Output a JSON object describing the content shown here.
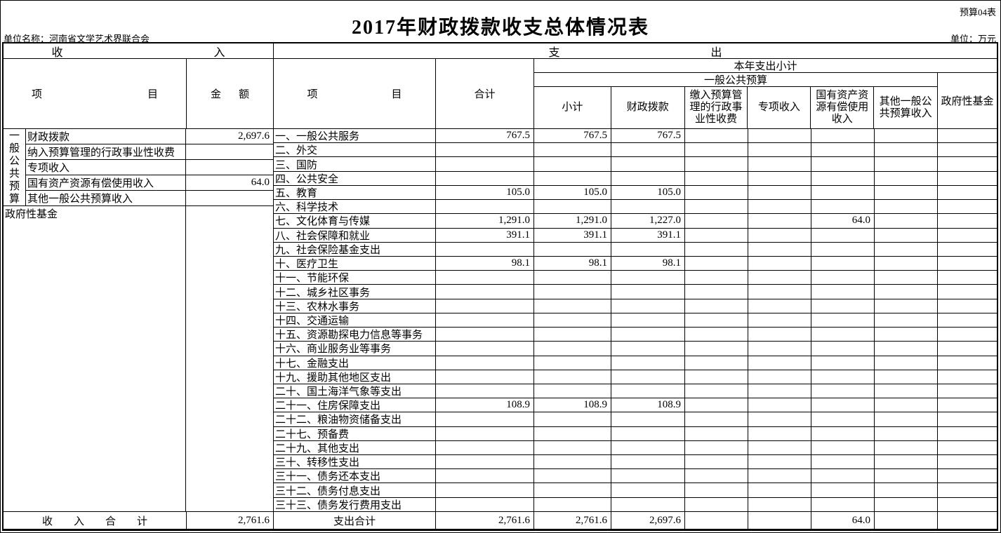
{
  "meta": {
    "sheet_label": "预算04表",
    "title": "2017年财政拨款收支总体情况表",
    "unit_name": "单位名称：河南省文学艺术界联合会",
    "unit": "单位：万元"
  },
  "headers": {
    "income_section": "收入",
    "expense_section": "支出",
    "income_item": "项目",
    "income_amount": "金额",
    "expense_item": "项目",
    "expense_total": "合计",
    "year_subtotal": "本年支出小计",
    "general_budget": "一般公共预算",
    "col_subtotal": "小计",
    "col_fiscal": "财政拨款",
    "col_fee": "缴入预算管理的行政事业性收费",
    "col_special": "专项收入",
    "col_state_asset": "国有资产资源有偿使用收入",
    "col_other": "其他一般公共预算收入",
    "col_gov_fund": "政府性基金"
  },
  "income": {
    "group_label": "一般公共预算",
    "rows": [
      {
        "item": "财政拨款",
        "amount": "2,697.6"
      },
      {
        "item": "纳入预算管理的行政事业性收费",
        "amount": ""
      },
      {
        "item": "专项收入",
        "amount": ""
      },
      {
        "item": "国有资产资源有偿使用收入",
        "amount": "64.0"
      },
      {
        "item": "其他一般公共预算收入",
        "amount": ""
      }
    ],
    "gov_fund_row": {
      "item": "政府性基金",
      "amount": ""
    },
    "empty_row_count": 19,
    "total": {
      "label": "收入合计",
      "amount": "2,761.6"
    }
  },
  "expense": {
    "rows": [
      {
        "item": "一、一般公共服务",
        "total": "767.5",
        "subtotal": "767.5",
        "fiscal": "767.5",
        "fee": "",
        "special": "",
        "state_asset": "",
        "other": "",
        "gov_fund": ""
      },
      {
        "item": "二、外交",
        "total": "",
        "subtotal": "",
        "fiscal": "",
        "fee": "",
        "special": "",
        "state_asset": "",
        "other": "",
        "gov_fund": ""
      },
      {
        "item": "三、国防",
        "total": "",
        "subtotal": "",
        "fiscal": "",
        "fee": "",
        "special": "",
        "state_asset": "",
        "other": "",
        "gov_fund": ""
      },
      {
        "item": "四、公共安全",
        "total": "",
        "subtotal": "",
        "fiscal": "",
        "fee": "",
        "special": "",
        "state_asset": "",
        "other": "",
        "gov_fund": ""
      },
      {
        "item": "五、教育",
        "total": "105.0",
        "subtotal": "105.0",
        "fiscal": "105.0",
        "fee": "",
        "special": "",
        "state_asset": "",
        "other": "",
        "gov_fund": ""
      },
      {
        "item": "六、科学技术",
        "total": "",
        "subtotal": "",
        "fiscal": "",
        "fee": "",
        "special": "",
        "state_asset": "",
        "other": "",
        "gov_fund": ""
      },
      {
        "item": "七、文化体育与传媒",
        "total": "1,291.0",
        "subtotal": "1,291.0",
        "fiscal": "1,227.0",
        "fee": "",
        "special": "",
        "state_asset": "64.0",
        "other": "",
        "gov_fund": ""
      },
      {
        "item": "八、社会保障和就业",
        "total": "391.1",
        "subtotal": "391.1",
        "fiscal": "391.1",
        "fee": "",
        "special": "",
        "state_asset": "",
        "other": "",
        "gov_fund": ""
      },
      {
        "item": "九、社会保险基金支出",
        "total": "",
        "subtotal": "",
        "fiscal": "",
        "fee": "",
        "special": "",
        "state_asset": "",
        "other": "",
        "gov_fund": ""
      },
      {
        "item": "十、医疗卫生",
        "total": "98.1",
        "subtotal": "98.1",
        "fiscal": "98.1",
        "fee": "",
        "special": "",
        "state_asset": "",
        "other": "",
        "gov_fund": ""
      },
      {
        "item": "十一、节能环保",
        "total": "",
        "subtotal": "",
        "fiscal": "",
        "fee": "",
        "special": "",
        "state_asset": "",
        "other": "",
        "gov_fund": ""
      },
      {
        "item": "十二、城乡社区事务",
        "total": "",
        "subtotal": "",
        "fiscal": "",
        "fee": "",
        "special": "",
        "state_asset": "",
        "other": "",
        "gov_fund": ""
      },
      {
        "item": "十三、农林水事务",
        "total": "",
        "subtotal": "",
        "fiscal": "",
        "fee": "",
        "special": "",
        "state_asset": "",
        "other": "",
        "gov_fund": ""
      },
      {
        "item": "十四、交通运输",
        "total": "",
        "subtotal": "",
        "fiscal": "",
        "fee": "",
        "special": "",
        "state_asset": "",
        "other": "",
        "gov_fund": ""
      },
      {
        "item": "十五、资源勘探电力信息等事务",
        "total": "",
        "subtotal": "",
        "fiscal": "",
        "fee": "",
        "special": "",
        "state_asset": "",
        "other": "",
        "gov_fund": ""
      },
      {
        "item": "十六、商业服务业等事务",
        "total": "",
        "subtotal": "",
        "fiscal": "",
        "fee": "",
        "special": "",
        "state_asset": "",
        "other": "",
        "gov_fund": ""
      },
      {
        "item": "十七、金融支出",
        "total": "",
        "subtotal": "",
        "fiscal": "",
        "fee": "",
        "special": "",
        "state_asset": "",
        "other": "",
        "gov_fund": ""
      },
      {
        "item": "十九、援助其他地区支出",
        "total": "",
        "subtotal": "",
        "fiscal": "",
        "fee": "",
        "special": "",
        "state_asset": "",
        "other": "",
        "gov_fund": ""
      },
      {
        "item": "二十、国土海洋气象等支出",
        "total": "",
        "subtotal": "",
        "fiscal": "",
        "fee": "",
        "special": "",
        "state_asset": "",
        "other": "",
        "gov_fund": ""
      },
      {
        "item": "二十一、住房保障支出",
        "total": "108.9",
        "subtotal": "108.9",
        "fiscal": "108.9",
        "fee": "",
        "special": "",
        "state_asset": "",
        "other": "",
        "gov_fund": ""
      },
      {
        "item": "二十二、粮油物资储备支出",
        "total": "",
        "subtotal": "",
        "fiscal": "",
        "fee": "",
        "special": "",
        "state_asset": "",
        "other": "",
        "gov_fund": ""
      },
      {
        "item": "二十七、预备费",
        "total": "",
        "subtotal": "",
        "fiscal": "",
        "fee": "",
        "special": "",
        "state_asset": "",
        "other": "",
        "gov_fund": ""
      },
      {
        "item": "二十九、其他支出",
        "total": "",
        "subtotal": "",
        "fiscal": "",
        "fee": "",
        "special": "",
        "state_asset": "",
        "other": "",
        "gov_fund": ""
      },
      {
        "item": "三十、转移性支出",
        "total": "",
        "subtotal": "",
        "fiscal": "",
        "fee": "",
        "special": "",
        "state_asset": "",
        "other": "",
        "gov_fund": ""
      },
      {
        "item": "三十一、债务还本支出",
        "total": "",
        "subtotal": "",
        "fiscal": "",
        "fee": "",
        "special": "",
        "state_asset": "",
        "other": "",
        "gov_fund": ""
      },
      {
        "item": "三十二、债务付息支出",
        "total": "",
        "subtotal": "",
        "fiscal": "",
        "fee": "",
        "special": "",
        "state_asset": "",
        "other": "",
        "gov_fund": ""
      },
      {
        "item": "三十三、债务发行费用支出",
        "total": "",
        "subtotal": "",
        "fiscal": "",
        "fee": "",
        "special": "",
        "state_asset": "",
        "other": "",
        "gov_fund": ""
      }
    ],
    "total": {
      "label": "支出合计",
      "total": "2,761.6",
      "subtotal": "2,761.6",
      "fiscal": "2,697.6",
      "fee": "",
      "special": "",
      "state_asset": "64.0",
      "other": "",
      "gov_fund": ""
    }
  }
}
